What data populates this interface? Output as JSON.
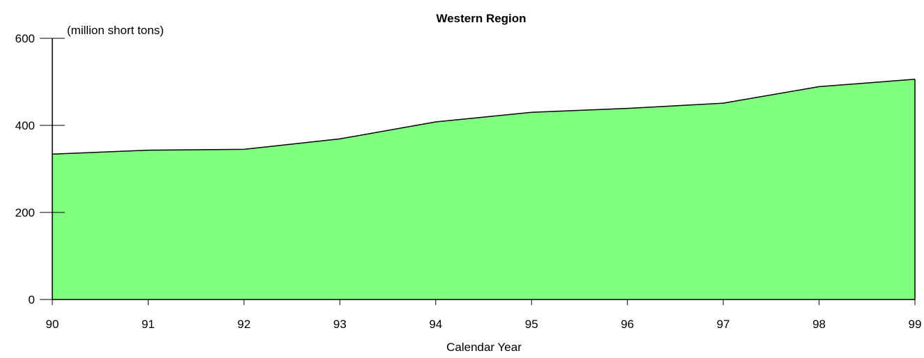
{
  "chart_data": {
    "type": "area",
    "title": "Western Region",
    "unit_label": "(million short tons)",
    "xlabel": "Calendar Year",
    "categories": [
      "90",
      "91",
      "92",
      "93",
      "94",
      "95",
      "96",
      "97",
      "98",
      "99"
    ],
    "series": [
      {
        "values": [
          334,
          343,
          345,
          369,
          408,
          430,
          439,
          451,
          489,
          506
        ]
      }
    ],
    "ylim": [
      0,
      600
    ],
    "yticks": [
      0,
      200,
      400,
      600
    ],
    "grid": false,
    "colors": {
      "fill": "#80ff80",
      "line": "#000000"
    }
  }
}
